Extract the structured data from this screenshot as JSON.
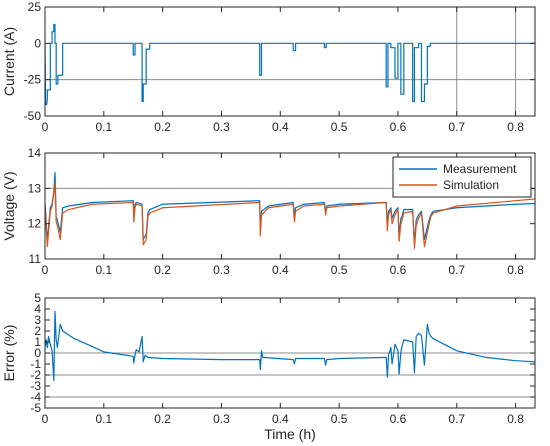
{
  "chart_data": [
    {
      "type": "line",
      "ylabel": "Current (A)",
      "xlim": [
        0,
        0.833
      ],
      "ylim": [
        -50,
        25
      ],
      "yticks": [
        -50,
        -25,
        0,
        25
      ],
      "xticks": [
        0,
        0.1,
        0.2,
        0.3,
        0.4,
        0.5,
        0.6,
        0.7,
        0.8
      ],
      "xticklabels": [
        "0",
        "0.1",
        "0.2",
        "0.3",
        "0.4",
        "0.5",
        "0.6",
        "0.7",
        "0.8"
      ],
      "gridlines_y": [
        -25
      ],
      "gridlines_x": [
        0.7,
        0.8
      ],
      "series": [
        {
          "color": "#0072BD",
          "x": [
            0,
            0.001,
            0.003,
            0.004,
            0.004,
            0.009,
            0.009,
            0.012,
            0.012,
            0.015,
            0.015,
            0.017,
            0.017,
            0.019,
            0.019,
            0.022,
            0.022,
            0.03,
            0.03,
            0.15,
            0.15,
            0.153,
            0.153,
            0.165,
            0.165,
            0.167,
            0.167,
            0.172,
            0.172,
            0.178,
            0.178,
            0.365,
            0.365,
            0.368,
            0.368,
            0.422,
            0.422,
            0.426,
            0.426,
            0.475,
            0.475,
            0.478,
            0.478,
            0.58,
            0.58,
            0.583,
            0.583,
            0.588,
            0.588,
            0.595,
            0.595,
            0.6,
            0.6,
            0.605,
            0.605,
            0.61,
            0.61,
            0.625,
            0.625,
            0.628,
            0.628,
            0.635,
            0.635,
            0.64,
            0.64,
            0.645,
            0.645,
            0.65,
            0.65,
            0.655,
            0.655,
            0.66,
            0.66,
            0.833
          ],
          "y": [
            0,
            -42,
            -42,
            -38,
            -32,
            -32,
            0,
            0,
            8,
            8,
            13,
            13,
            0,
            0,
            -28,
            -28,
            -22,
            -22,
            0,
            0,
            -8,
            -8,
            0,
            0,
            -40,
            -40,
            -28,
            -28,
            -4,
            -4,
            0,
            0,
            -22,
            -22,
            0,
            0,
            -5,
            -5,
            0,
            0,
            -3,
            -3,
            0,
            0,
            -30,
            -30,
            0,
            0,
            -3,
            -3,
            -24,
            -24,
            0,
            0,
            -35,
            -35,
            0,
            0,
            -40,
            -40,
            -3,
            -3,
            0,
            0,
            -40,
            -40,
            -28,
            -28,
            -2,
            -2,
            0,
            0,
            0,
            0
          ]
        }
      ]
    },
    {
      "type": "line",
      "ylabel": "Voltage (V)",
      "xlim": [
        0,
        0.833
      ],
      "ylim": [
        11,
        14
      ],
      "yticks": [
        11,
        12,
        13,
        14
      ],
      "xticks": [
        0,
        0.1,
        0.2,
        0.3,
        0.4,
        0.5,
        0.6,
        0.7,
        0.8
      ],
      "xticklabels": [
        "0",
        "0.1",
        "0.2",
        "0.3",
        "0.4",
        "0.5",
        "0.6",
        "0.7",
        "0.8"
      ],
      "gridlines_y": [
        13
      ],
      "legend_position": "top-right",
      "series": [
        {
          "name": "Measurement",
          "color": "#0072BD",
          "x": [
            0,
            0.004,
            0.006,
            0.009,
            0.012,
            0.015,
            0.017,
            0.019,
            0.021,
            0.026,
            0.03,
            0.04,
            0.08,
            0.15,
            0.151,
            0.153,
            0.155,
            0.165,
            0.167,
            0.172,
            0.175,
            0.178,
            0.2,
            0.365,
            0.366,
            0.368,
            0.38,
            0.422,
            0.424,
            0.426,
            0.44,
            0.475,
            0.477,
            0.479,
            0.5,
            0.58,
            0.582,
            0.584,
            0.588,
            0.59,
            0.595,
            0.6,
            0.602,
            0.605,
            0.607,
            0.61,
            0.625,
            0.628,
            0.631,
            0.635,
            0.64,
            0.645,
            0.65,
            0.653,
            0.656,
            0.66,
            0.7,
            0.8,
            0.833
          ],
          "y": [
            12.6,
            11.5,
            11.9,
            12.45,
            12.55,
            12.9,
            13.45,
            12.2,
            12.1,
            11.75,
            12.45,
            12.5,
            12.6,
            12.65,
            12.2,
            12.55,
            12.6,
            12.55,
            11.55,
            11.7,
            12.3,
            12.4,
            12.55,
            12.65,
            11.8,
            12.35,
            12.5,
            12.6,
            12.2,
            12.45,
            12.55,
            12.6,
            12.35,
            12.5,
            12.55,
            12.6,
            11.95,
            12.35,
            12.45,
            12.15,
            12.35,
            12.45,
            11.65,
            12.15,
            12.2,
            12.4,
            12.4,
            11.45,
            12.1,
            12.25,
            12.35,
            11.55,
            11.9,
            12.1,
            12.25,
            12.35,
            12.45,
            12.55,
            12.57
          ]
        },
        {
          "name": "Simulation",
          "color": "#D95319",
          "x": [
            0,
            0.004,
            0.006,
            0.009,
            0.012,
            0.015,
            0.017,
            0.019,
            0.021,
            0.026,
            0.03,
            0.04,
            0.08,
            0.15,
            0.151,
            0.153,
            0.155,
            0.165,
            0.167,
            0.172,
            0.175,
            0.178,
            0.2,
            0.365,
            0.366,
            0.368,
            0.38,
            0.422,
            0.424,
            0.426,
            0.44,
            0.475,
            0.477,
            0.479,
            0.5,
            0.58,
            0.582,
            0.584,
            0.588,
            0.59,
            0.595,
            0.6,
            0.602,
            0.605,
            0.607,
            0.61,
            0.625,
            0.628,
            0.631,
            0.635,
            0.64,
            0.645,
            0.65,
            0.653,
            0.656,
            0.66,
            0.7,
            0.8,
            0.833
          ],
          "y": [
            12.5,
            11.35,
            11.75,
            12.35,
            12.5,
            12.85,
            13.15,
            12.05,
            11.95,
            11.55,
            12.3,
            12.4,
            12.55,
            12.6,
            12.05,
            12.45,
            12.55,
            12.5,
            11.4,
            11.55,
            12.2,
            12.3,
            12.45,
            12.6,
            11.65,
            12.25,
            12.45,
            12.55,
            12.05,
            12.35,
            12.5,
            12.55,
            12.25,
            12.45,
            12.5,
            12.6,
            11.8,
            12.25,
            12.4,
            12.0,
            12.25,
            12.4,
            11.5,
            12.0,
            12.1,
            12.3,
            12.35,
            11.3,
            11.95,
            12.15,
            12.3,
            11.35,
            11.75,
            12.0,
            12.2,
            12.3,
            12.5,
            12.65,
            12.7
          ]
        }
      ]
    },
    {
      "type": "line",
      "ylabel": "Error (%)",
      "xlabel": "Time (h)",
      "xlim": [
        0,
        0.833
      ],
      "ylim": [
        -5,
        5
      ],
      "yticks": [
        -5,
        -4,
        -3,
        -2,
        -1,
        0,
        1,
        2,
        3,
        4,
        5
      ],
      "xticks": [
        0,
        0.1,
        0.2,
        0.3,
        0.4,
        0.5,
        0.6,
        0.7,
        0.8
      ],
      "xticklabels": [
        "0",
        "0.1",
        "0.2",
        "0.3",
        "0.4",
        "0.5",
        "0.6",
        "0.7",
        "0.8"
      ],
      "gridlines_y": [
        -4,
        -2,
        0
      ],
      "series": [
        {
          "color": "#0072BD",
          "x": [
            0,
            0.002,
            0.004,
            0.006,
            0.009,
            0.012,
            0.015,
            0.017,
            0.019,
            0.021,
            0.026,
            0.03,
            0.05,
            0.08,
            0.1,
            0.15,
            0.151,
            0.153,
            0.155,
            0.16,
            0.165,
            0.167,
            0.17,
            0.175,
            0.2,
            0.3,
            0.365,
            0.366,
            0.368,
            0.37,
            0.422,
            0.424,
            0.426,
            0.475,
            0.477,
            0.479,
            0.5,
            0.58,
            0.582,
            0.584,
            0.588,
            0.59,
            0.595,
            0.6,
            0.602,
            0.605,
            0.607,
            0.61,
            0.625,
            0.628,
            0.631,
            0.635,
            0.64,
            0.645,
            0.65,
            0.653,
            0.656,
            0.66,
            0.7,
            0.75,
            0.8,
            0.833
          ],
          "y": [
            0.5,
            1.2,
            0.5,
            1.5,
            0.8,
            0.2,
            -2.5,
            3.8,
            1.2,
            0.5,
            2.6,
            2.0,
            1.3,
            0.6,
            0.1,
            -0.3,
            -0.9,
            -0.2,
            0.3,
            0.1,
            1.5,
            -0.8,
            -0.2,
            -0.4,
            -0.5,
            -0.6,
            -0.6,
            -1.5,
            0.2,
            -0.4,
            -0.6,
            -1.0,
            -0.5,
            -0.5,
            -1.1,
            -0.6,
            -0.5,
            -0.4,
            -2.2,
            -0.2,
            0.5,
            -1.0,
            0.8,
            0.2,
            -1.9,
            0.1,
            0.6,
            1.2,
            1.0,
            -1.8,
            1.5,
            1.8,
            1.6,
            -1.1,
            2.6,
            1.8,
            1.5,
            1.3,
            0.2,
            -0.4,
            -0.7,
            -0.8
          ]
        }
      ]
    }
  ]
}
